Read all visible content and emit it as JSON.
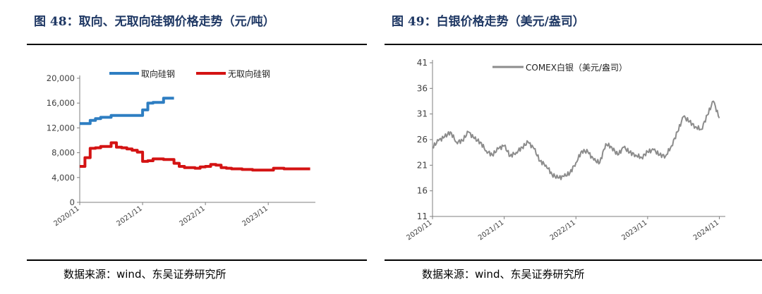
{
  "figures": [
    {
      "title": "图 48：取向、无取向硅钢价格走势（元/吨）",
      "source": "数据来源：wind、东吴证券研究所"
    },
    {
      "title": "图 49：白银价格走势（美元/盎司）",
      "source": "数据来源：wind、东吴证券研究所"
    }
  ],
  "colors": {
    "title": "#1f3864",
    "grain_oriented": "#2e7ec2",
    "non_oriented": "#d41313",
    "silver": "#8c8c8c"
  },
  "chart_data": [
    {
      "type": "line",
      "title": "",
      "xlabel": "",
      "ylabel": "",
      "ylim": [
        0,
        20000
      ],
      "yticks": [
        "0",
        "4,000",
        "8,000",
        "12,000",
        "16,000",
        "20,000"
      ],
      "xticks": [
        "2020/11",
        "2021/11",
        "2022/11",
        "2023/11"
      ],
      "legend_position": "top",
      "grid": false,
      "series": [
        {
          "name": "取向硅钢",
          "color": "#2e7ec2",
          "x": [
            "2020-11",
            "2020-12",
            "2021-01",
            "2021-02",
            "2021-03",
            "2021-04",
            "2021-05",
            "2021-06",
            "2021-07",
            "2021-08",
            "2021-09",
            "2021-10",
            "2021-11",
            "2021-12",
            "2022-01",
            "2022-02",
            "2022-03",
            "2022-04",
            "2022-05"
          ],
          "y": [
            12700,
            12700,
            13200,
            13500,
            13700,
            13700,
            14000,
            14000,
            14000,
            14000,
            14000,
            14000,
            14900,
            16000,
            16100,
            16100,
            16800,
            16800,
            16800
          ]
        },
        {
          "name": "无取向硅钢",
          "color": "#d41313",
          "x": [
            "2020-11",
            "2020-12",
            "2021-01",
            "2021-02",
            "2021-03",
            "2021-04",
            "2021-05",
            "2021-06",
            "2021-07",
            "2021-08",
            "2021-09",
            "2021-10",
            "2021-11",
            "2021-12",
            "2022-01",
            "2022-02",
            "2022-03",
            "2022-04",
            "2022-05",
            "2022-06",
            "2022-07",
            "2022-08",
            "2022-09",
            "2022-10",
            "2022-11",
            "2022-12",
            "2023-01",
            "2023-02",
            "2023-03",
            "2023-04",
            "2023-05",
            "2023-06",
            "2023-07",
            "2023-08",
            "2023-09",
            "2023-10",
            "2023-11",
            "2023-12",
            "2024-01",
            "2024-02",
            "2024-03",
            "2024-04",
            "2024-05",
            "2024-06",
            "2024-07"
          ],
          "y": [
            5800,
            7200,
            8700,
            8800,
            9000,
            9000,
            9600,
            8900,
            8800,
            8600,
            8400,
            8100,
            6600,
            6700,
            7000,
            7000,
            6900,
            6900,
            6300,
            5800,
            5600,
            5600,
            5500,
            5700,
            5800,
            6100,
            6000,
            5600,
            5500,
            5400,
            5400,
            5300,
            5300,
            5200,
            5200,
            5200,
            5200,
            5500,
            5500,
            5400,
            5400,
            5400,
            5400,
            5400,
            5400
          ]
        }
      ]
    },
    {
      "type": "line",
      "title": "",
      "xlabel": "",
      "ylabel": "",
      "ylim": [
        11,
        41
      ],
      "yticks": [
        "11",
        "16",
        "21",
        "26",
        "31",
        "36",
        "41"
      ],
      "xticks": [
        "2020/11",
        "2021/11",
        "2022/11",
        "2023/11",
        "2024/11"
      ],
      "legend_position": "top",
      "grid": false,
      "series": [
        {
          "name": "COMEX白银（美元/盎司）",
          "color": "#8c8c8c",
          "x": [
            "2020-11",
            "2020-12",
            "2021-01",
            "2021-02",
            "2021-03",
            "2021-04",
            "2021-05",
            "2021-06",
            "2021-07",
            "2021-08",
            "2021-09",
            "2021-10",
            "2021-11",
            "2021-12",
            "2022-01",
            "2022-02",
            "2022-03",
            "2022-04",
            "2022-05",
            "2022-06",
            "2022-07",
            "2022-08",
            "2022-09",
            "2022-10",
            "2022-11",
            "2022-12",
            "2023-01",
            "2023-02",
            "2023-03",
            "2023-04",
            "2023-05",
            "2023-06",
            "2023-07",
            "2023-08",
            "2023-09",
            "2023-10",
            "2023-11",
            "2023-12",
            "2024-01",
            "2024-02",
            "2024-03",
            "2024-04",
            "2024-05",
            "2024-06",
            "2024-07",
            "2024-08",
            "2024-09",
            "2024-10",
            "2024-11"
          ],
          "y": [
            24.5,
            25.8,
            26.5,
            27.5,
            25.5,
            25.8,
            27.5,
            26.2,
            25.5,
            23.8,
            23.0,
            24.2,
            24.8,
            22.8,
            23.5,
            24.5,
            25.5,
            24.2,
            21.8,
            21.0,
            19.2,
            18.5,
            18.8,
            19.5,
            21.5,
            23.8,
            23.6,
            22.0,
            21.5,
            25.2,
            24.5,
            23.0,
            24.5,
            23.5,
            23.0,
            22.5,
            23.6,
            24.0,
            23.0,
            22.8,
            24.8,
            27.5,
            30.5,
            29.5,
            28.5,
            28.0,
            30.8,
            33.5,
            30.2
          ]
        }
      ]
    }
  ]
}
